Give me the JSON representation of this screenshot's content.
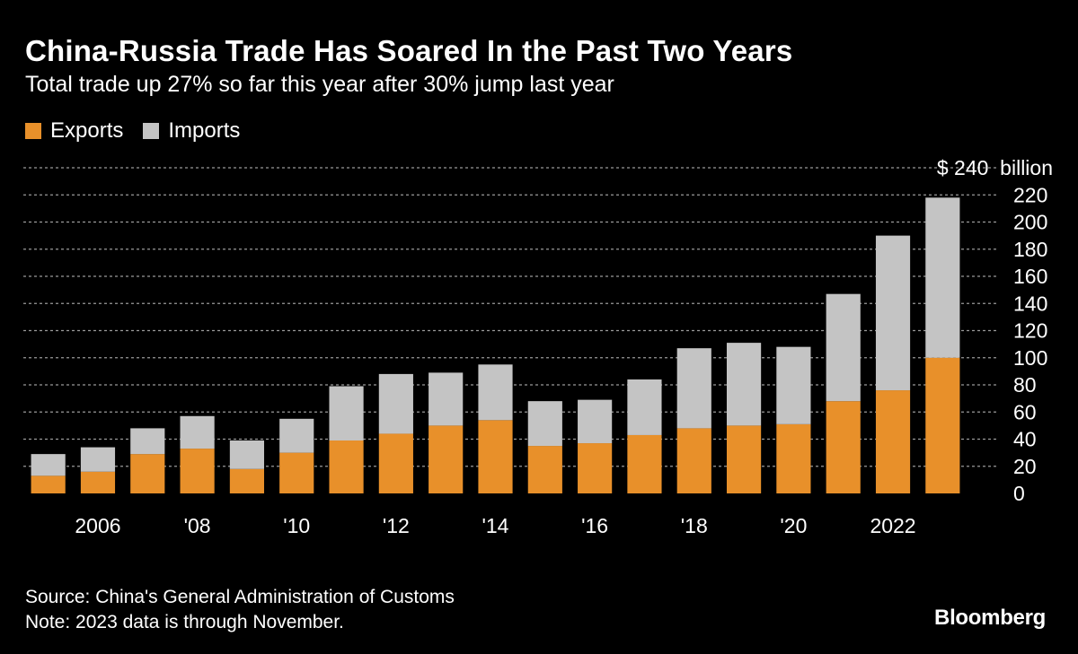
{
  "title": "China-Russia Trade Has Soared In the Past Two Years",
  "subtitle": "Total trade up 27% so far this year after 30% jump last year",
  "legend": {
    "exports_label": "Exports",
    "imports_label": "Imports"
  },
  "colors": {
    "exports": "#e8902a",
    "imports": "#c4c4c4",
    "grid": "#9a9a9a",
    "background": "#000000"
  },
  "source": "Source: China's General Administration of Customs",
  "note": "Note: 2023 data is through November.",
  "brand": "Bloomberg",
  "chart_data": {
    "type": "bar",
    "stacked": true,
    "title": "China-Russia Trade Has Soared In the Past Two Years",
    "subtitle": "Total trade up 27% so far this year after 30% jump last year",
    "xlabel": "",
    "ylabel": "",
    "ylim": [
      0,
      240
    ],
    "y_ticks": [
      0,
      20,
      40,
      60,
      80,
      100,
      120,
      140,
      160,
      180,
      200,
      220,
      240
    ],
    "y_tick_labels": [
      "0",
      "20",
      "40",
      "60",
      "80",
      "100",
      "120",
      "140",
      "160",
      "180",
      "200",
      "220",
      "$ 240  billion"
    ],
    "categories": [
      "2005",
      "2006",
      "2007",
      "2008",
      "2009",
      "2010",
      "2011",
      "2012",
      "2013",
      "2014",
      "2015",
      "2016",
      "2017",
      "2018",
      "2019",
      "2020",
      "2021",
      "2022",
      "2023"
    ],
    "x_tick_labels": [
      {
        "category": "2006",
        "label": "2006"
      },
      {
        "category": "2008",
        "label": "'08"
      },
      {
        "category": "2010",
        "label": "'10"
      },
      {
        "category": "2012",
        "label": "'12"
      },
      {
        "category": "2014",
        "label": "'14"
      },
      {
        "category": "2016",
        "label": "'16"
      },
      {
        "category": "2018",
        "label": "'18"
      },
      {
        "category": "2020",
        "label": "'20"
      },
      {
        "category": "2022",
        "label": "2022"
      }
    ],
    "series": [
      {
        "name": "Exports",
        "values": [
          13,
          16,
          29,
          33,
          18,
          30,
          39,
          44,
          50,
          54,
          35,
          37,
          43,
          48,
          50,
          51,
          68,
          76,
          100
        ]
      },
      {
        "name": "Imports",
        "values": [
          16,
          18,
          19,
          24,
          21,
          25,
          40,
          44,
          39,
          41,
          33,
          32,
          41,
          59,
          61,
          57,
          79,
          114,
          118
        ]
      }
    ],
    "legend_position": "top-left",
    "grid": true
  }
}
